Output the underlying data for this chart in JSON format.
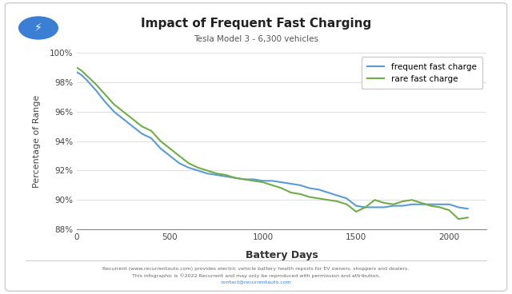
{
  "title": "Impact of Frequent Fast Charging",
  "subtitle": "Tesla Model 3 - 6,300 vehicles",
  "xlabel": "Battery Days",
  "ylabel": "Percentage of Range",
  "xlim": [
    0,
    2200
  ],
  "ylim": [
    88,
    100
  ],
  "yticks": [
    88,
    90,
    92,
    94,
    96,
    98,
    100
  ],
  "xticks": [
    0,
    500,
    1000,
    1500,
    2000
  ],
  "background_color": "#ffffff",
  "plot_bg_color": "#ffffff",
  "border_color": "#cccccc",
  "frequent_color": "#5b9bd5",
  "rare_color": "#70ad47",
  "footer_line1": "Recurrent (www.recurrentauto.com) provides electric vehicle battery health reports for EV owners, shoppers and dealers.",
  "footer_line2": "This infographic is ©2022 Recurrent and may only be reproduced with permission and attribution.",
  "footer_line3": "contact@recurrentauto.com",
  "frequent_x": [
    0,
    25,
    50,
    100,
    150,
    200,
    250,
    300,
    350,
    400,
    450,
    500,
    550,
    600,
    650,
    700,
    750,
    800,
    850,
    900,
    950,
    1000,
    1050,
    1100,
    1150,
    1200,
    1250,
    1300,
    1350,
    1400,
    1450,
    1500,
    1550,
    1600,
    1650,
    1700,
    1750,
    1800,
    1850,
    1900,
    1950,
    2000,
    2050,
    2100
  ],
  "frequent_y": [
    98.7,
    98.5,
    98.2,
    97.5,
    96.7,
    96.0,
    95.5,
    95.0,
    94.5,
    94.2,
    93.5,
    93.0,
    92.5,
    92.2,
    92.0,
    91.8,
    91.7,
    91.6,
    91.5,
    91.4,
    91.4,
    91.3,
    91.3,
    91.2,
    91.1,
    91.0,
    90.8,
    90.7,
    90.5,
    90.3,
    90.1,
    89.6,
    89.5,
    89.5,
    89.5,
    89.6,
    89.6,
    89.7,
    89.7,
    89.7,
    89.7,
    89.7,
    89.5,
    89.4
  ],
  "rare_x": [
    0,
    25,
    50,
    100,
    150,
    200,
    250,
    300,
    350,
    400,
    450,
    500,
    550,
    600,
    650,
    700,
    750,
    800,
    850,
    900,
    950,
    1000,
    1050,
    1100,
    1150,
    1200,
    1250,
    1300,
    1350,
    1400,
    1450,
    1500,
    1550,
    1600,
    1650,
    1700,
    1750,
    1800,
    1850,
    1900,
    1950,
    2000,
    2050,
    2100
  ],
  "rare_y": [
    99.0,
    98.8,
    98.5,
    97.9,
    97.2,
    96.5,
    96.0,
    95.5,
    95.0,
    94.7,
    94.0,
    93.5,
    93.0,
    92.5,
    92.2,
    92.0,
    91.8,
    91.7,
    91.5,
    91.4,
    91.3,
    91.2,
    91.0,
    90.8,
    90.5,
    90.4,
    90.2,
    90.1,
    90.0,
    89.9,
    89.7,
    89.2,
    89.5,
    90.0,
    89.8,
    89.7,
    89.9,
    90.0,
    89.8,
    89.6,
    89.5,
    89.3,
    88.7,
    88.8
  ],
  "legend_frequent": "frequent fast charge",
  "legend_rare": "rare fast charge",
  "lightning_bg": "#3b7fd4"
}
